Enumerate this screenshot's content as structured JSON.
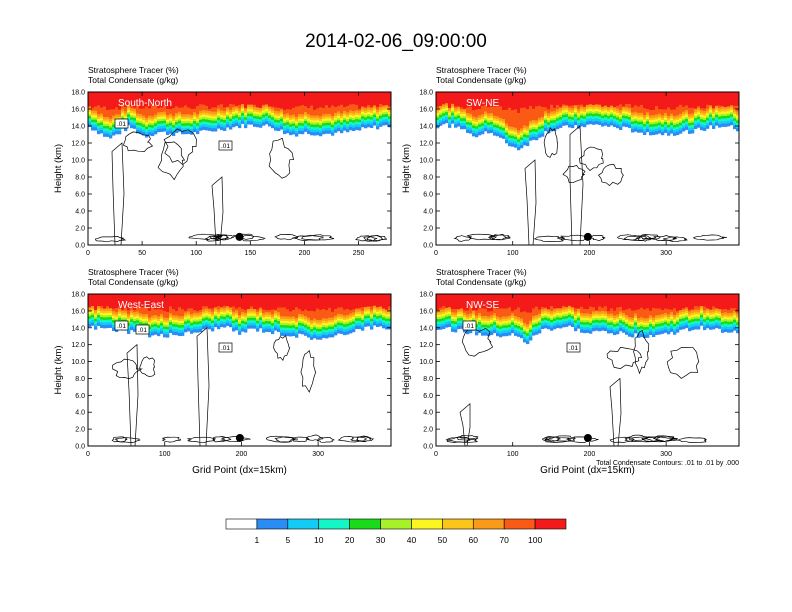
{
  "title": "2014-02-06_09:00:00",
  "colorbar": {
    "labels": [
      "1",
      "5",
      "10",
      "20",
      "30",
      "40",
      "50",
      "60",
      "70",
      "100"
    ],
    "colors": [
      "#ffffff",
      "#2a8cf5",
      "#12ccf7",
      "#13f7c7",
      "#19dc19",
      "#a6f227",
      "#fbf61f",
      "#fcc51a",
      "#fb9a16",
      "#fb5a14",
      "#f41a1a"
    ]
  },
  "footnote": "Total Condensate Contours: .01 to .01 by .000",
  "chart_data": [
    {
      "type": "contour",
      "header_lines": [
        "Stratosphere Tracer   (%)",
        "Total Condensate   (g/kg)"
      ],
      "panel_label": "South-North",
      "ylabel": "Height (km)",
      "xlabel": "",
      "xlim": [
        0,
        280
      ],
      "ylim": [
        0,
        18
      ],
      "xticks": [
        0,
        50,
        100,
        150,
        200,
        250
      ],
      "yticks": [
        "0.0",
        "2.0",
        "4.0",
        "6.0",
        "8.0",
        "10.0",
        "12.0",
        "14.0",
        "16.0",
        "18.0"
      ],
      "marker_x": 140,
      "contour_labels": [
        ".01",
        ".01"
      ]
    },
    {
      "type": "contour",
      "header_lines": [
        "Stratosphere Tracer   (%)",
        "Total Condensate   (g/kg)"
      ],
      "panel_label": "SW-NE",
      "ylabel": "Height (km)",
      "xlabel": "",
      "xlim": [
        0,
        395
      ],
      "ylim": [
        0,
        18
      ],
      "xticks": [
        0,
        100,
        200,
        300
      ],
      "yticks": [
        "0.0",
        "2.0",
        "4.0",
        "6.0",
        "8.0",
        "10.0",
        "12.0",
        "14.0",
        "16.0",
        "18.0"
      ],
      "marker_x": 198,
      "contour_labels": []
    },
    {
      "type": "contour",
      "header_lines": [
        "Stratosphere Tracer   (%)",
        "Total Condensate   (g/kg)"
      ],
      "panel_label": "West-East",
      "ylabel": "Height (km)",
      "xlabel": "Grid Point (dx=15km)",
      "xlim": [
        0,
        395
      ],
      "ylim": [
        0,
        18
      ],
      "xticks": [
        0,
        100,
        200,
        300
      ],
      "yticks": [
        "0.0",
        "2.0",
        "4.0",
        "6.0",
        "8.0",
        "10.0",
        "12.0",
        "14.0",
        "16.0",
        "18.0"
      ],
      "marker_x": 198,
      "contour_labels": [
        ".01",
        ".01",
        ".01"
      ]
    },
    {
      "type": "contour",
      "header_lines": [
        "Stratosphere Tracer   (%)",
        "Total Condensate   (g/kg)"
      ],
      "panel_label": "NW-SE",
      "ylabel": "Height (km)",
      "xlabel": "Grid Point (dx=15km)",
      "xlim": [
        0,
        395
      ],
      "ylim": [
        0,
        18
      ],
      "xticks": [
        0,
        100,
        200,
        300
      ],
      "yticks": [
        "0.0",
        "2.0",
        "4.0",
        "6.0",
        "8.0",
        "10.0",
        "12.0",
        "14.0",
        "16.0",
        "18.0"
      ],
      "marker_x": 198,
      "contour_labels": [
        ".01",
        ".01"
      ]
    }
  ]
}
